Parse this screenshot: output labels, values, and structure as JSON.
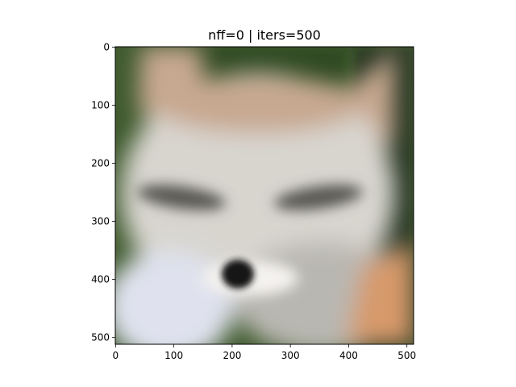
{
  "chart_data": {
    "type": "image",
    "title": "nff=0 | iters=500",
    "xlabel": "",
    "ylabel": "",
    "xlim": [
      -0.5,
      511.5
    ],
    "ylim": [
      511.5,
      -0.5
    ],
    "xticks": [
      0,
      100,
      200,
      300,
      400,
      500
    ],
    "yticks": [
      0,
      100,
      200,
      300,
      400,
      500
    ],
    "grid": false,
    "image_content": "blurry reconstructed photo of a fox face",
    "palette": {
      "background_green": "#3f5a2e",
      "background_dark": "#263520",
      "ear_tan": "#c7a890",
      "fur_light": "#d8d5cf",
      "fur_gray": "#b9b7b1",
      "eye_band": "#5a5a52",
      "fur_bluewhite": "#dfe2ee",
      "cheek_orange": "#d79a6a",
      "nose": "#141414",
      "muzzle_white": "#f4f2ef"
    }
  }
}
